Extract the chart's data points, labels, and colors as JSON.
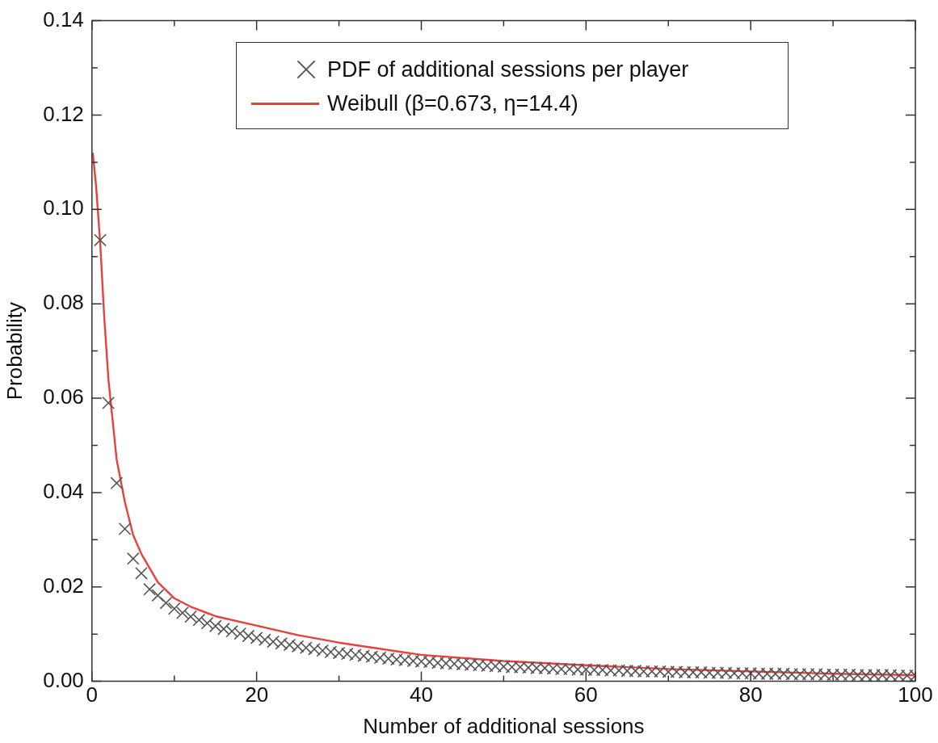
{
  "chart_data": {
    "type": "scatter",
    "xlabel": "Number of additional sessions",
    "ylabel": "Probability",
    "xlim": [
      0,
      100
    ],
    "ylim": [
      0,
      0.14
    ],
    "xticks": [
      0,
      {
        "value": 10,
        "label": null
      },
      20,
      {
        "value": 30,
        "label": null
      },
      40,
      {
        "value": 50,
        "label": null
      },
      60,
      {
        "value": 70,
        "label": null
      },
      80,
      {
        "value": 90,
        "label": null
      },
      100
    ],
    "yticks": [
      {
        "value": 0,
        "label": "0.00"
      },
      {
        "value": 0.01,
        "label": null
      },
      {
        "value": 0.02,
        "label": "0.02"
      },
      {
        "value": 0.03,
        "label": null
      },
      {
        "value": 0.04,
        "label": "0.04"
      },
      {
        "value": 0.05,
        "label": null
      },
      {
        "value": 0.06,
        "label": "0.06"
      },
      {
        "value": 0.07,
        "label": null
      },
      {
        "value": 0.08,
        "label": "0.08"
      },
      {
        "value": 0.09,
        "label": null
      },
      {
        "value": 0.1,
        "label": "0.10"
      },
      {
        "value": 0.11,
        "label": null
      },
      {
        "value": 0.12,
        "label": "0.12"
      },
      {
        "value": 0.13,
        "label": null
      },
      {
        "value": 0.14,
        "label": "0.14"
      }
    ],
    "grid": false,
    "legend": "top",
    "series": [
      {
        "name": "PDF of additional sessions per player",
        "marker": "cross",
        "color": "#555555",
        "x": [
          1,
          2,
          3,
          4,
          5,
          6,
          7,
          8,
          9,
          10,
          11,
          12,
          13,
          14,
          15,
          16,
          17,
          18,
          19,
          20,
          21,
          22,
          23,
          24,
          25,
          26,
          27,
          28,
          29,
          30,
          31,
          32,
          33,
          34,
          35,
          36,
          37,
          38,
          39,
          40,
          41,
          42,
          43,
          44,
          45,
          46,
          47,
          48,
          49,
          50,
          51,
          52,
          53,
          54,
          55,
          56,
          57,
          58,
          59,
          60,
          61,
          62,
          63,
          64,
          65,
          66,
          67,
          68,
          69,
          70,
          71,
          72,
          73,
          74,
          75,
          76,
          77,
          78,
          79,
          80,
          81,
          82,
          83,
          84,
          85,
          86,
          87,
          88,
          89,
          90,
          91,
          92,
          93,
          94,
          95,
          96,
          97,
          98,
          99,
          100
        ],
        "values": [
          0.0935,
          0.059,
          0.042,
          0.0323,
          0.026,
          0.0229,
          0.0195,
          0.0182,
          0.0166,
          0.0154,
          0.0145,
          0.0137,
          0.013,
          0.0123,
          0.0117,
          0.0111,
          0.0106,
          0.0101,
          0.0096,
          0.0092,
          0.0088,
          0.0084,
          0.008,
          0.0077,
          0.0074,
          0.0071,
          0.0068,
          0.0065,
          0.0062,
          0.006,
          0.0058,
          0.0056,
          0.0054,
          0.0052,
          0.005,
          0.0048,
          0.0046,
          0.0045,
          0.0043,
          0.0042,
          0.0041,
          0.0039,
          0.0038,
          0.0037,
          0.0036,
          0.0035,
          0.0034,
          0.0033,
          0.0032,
          0.0031,
          0.003,
          0.003,
          0.0029,
          0.0028,
          0.0028,
          0.0027,
          0.0026,
          0.0026,
          0.0025,
          0.0025,
          0.0024,
          0.0024,
          0.0023,
          0.0023,
          0.0022,
          0.0022,
          0.0021,
          0.0021,
          0.0021,
          0.002,
          0.002,
          0.0019,
          0.0019,
          0.0019,
          0.0018,
          0.0018,
          0.0018,
          0.0017,
          0.0017,
          0.0017,
          0.0016,
          0.0016,
          0.0016,
          0.0016,
          0.0015,
          0.0015,
          0.0015,
          0.0015,
          0.0014,
          0.0014,
          0.0014,
          0.0014,
          0.0013,
          0.0013,
          0.0013,
          0.0013,
          0.0013,
          0.0012,
          0.0012,
          0.0012
        ]
      },
      {
        "name": "Weibull (β=0.673, η=14.4)",
        "type": "line",
        "marker": "none",
        "line_style": "solid",
        "color": "#e8403a",
        "x": [
          0.1,
          0.5,
          1,
          1.5,
          2,
          3,
          4,
          5,
          6,
          8,
          10,
          12,
          15,
          20,
          25,
          30,
          40,
          50,
          60,
          70,
          80,
          90,
          100
        ],
        "values": [
          0.112,
          0.105,
          0.093,
          0.077,
          0.064,
          0.047,
          0.038,
          0.031,
          0.027,
          0.021,
          0.0176,
          0.0158,
          0.0138,
          0.0118,
          0.0098,
          0.0082,
          0.0056,
          0.0043,
          0.0034,
          0.0026,
          0.0021,
          0.0016,
          0.0013
        ]
      }
    ]
  }
}
